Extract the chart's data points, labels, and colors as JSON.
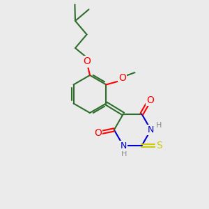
{
  "bg_color": "#ebebeb",
  "bond_color": "#2d6e2d",
  "bond_width": 1.5,
  "atom_colors": {
    "O": "#ff0000",
    "N": "#0000cc",
    "S": "#cccc00",
    "H": "#888888",
    "C": "#2d6e2d"
  },
  "font_size": 9,
  "figsize": [
    3.0,
    3.0
  ],
  "dpi": 100,
  "xlim": [
    0,
    10
  ],
  "ylim": [
    0,
    10
  ]
}
